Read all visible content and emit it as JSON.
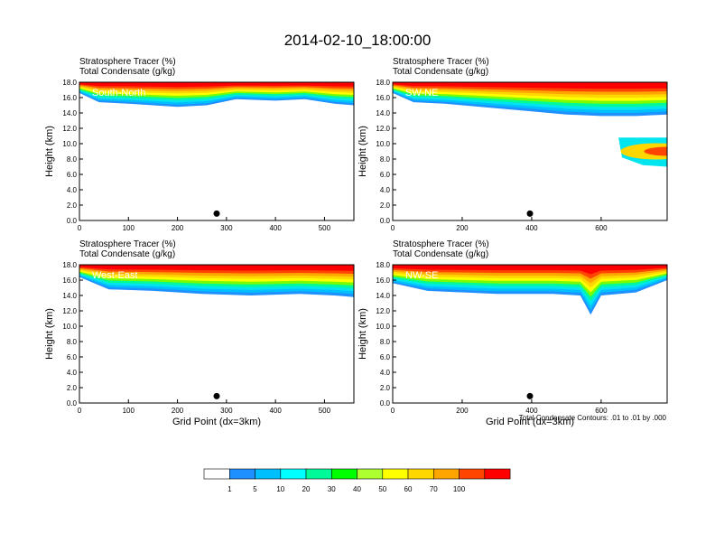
{
  "figure": {
    "title": "2014-02-10_18:00:00",
    "footnote": "Total Condensate Contours: .01 to .01 by .000"
  },
  "colorbar": {
    "labels": [
      "1",
      "5",
      "10",
      "20",
      "30",
      "40",
      "50",
      "60",
      "70",
      "100"
    ],
    "colors": [
      "#ffffff",
      "#1e90ff",
      "#00bfff",
      "#00ffff",
      "#00fa9a",
      "#00ff00",
      "#adff2f",
      "#ffff00",
      "#ffd700",
      "#ffa500",
      "#ff4500",
      "#ff0000"
    ]
  },
  "chart_data": [
    {
      "type": "heatmap",
      "panel": "South-North",
      "label_top": "Stratosphere Tracer   (%)",
      "label_sub": "Total Condensate   (g/kg)",
      "xlabel": "",
      "ylabel": "Height (km)",
      "xlim": [
        0,
        560
      ],
      "ylim": [
        0,
        18
      ],
      "xticks": [
        "0",
        "100",
        "200",
        "300",
        "400",
        "500"
      ],
      "yticks": [
        "0.0",
        "2.0",
        "4.0",
        "6.0",
        "8.0",
        "10.0",
        "12.0",
        "14.0",
        "16.0",
        "18.0"
      ],
      "tropopause": [
        [
          0,
          16.6
        ],
        [
          40,
          15.4
        ],
        [
          100,
          15.2
        ],
        [
          200,
          14.8
        ],
        [
          260,
          15.0
        ],
        [
          320,
          15.8
        ],
        [
          400,
          15.6
        ],
        [
          460,
          15.8
        ],
        [
          520,
          15.2
        ],
        [
          560,
          15.0
        ]
      ],
      "plume": [],
      "marker_x": 280
    },
    {
      "type": "heatmap",
      "panel": "SW-NE",
      "label_top": "Stratosphere Tracer   (%)",
      "label_sub": "Total Condensate   (g/kg)",
      "xlabel": "",
      "ylabel": "Height (km)",
      "xlim": [
        0,
        790
      ],
      "ylim": [
        0,
        18
      ],
      "xticks": [
        "0",
        "200",
        "400",
        "600"
      ],
      "yticks": [
        "0.0",
        "2.0",
        "4.0",
        "6.0",
        "8.0",
        "10.0",
        "12.0",
        "14.0",
        "16.0",
        "18.0"
      ],
      "tropopause": [
        [
          0,
          16.6
        ],
        [
          60,
          15.4
        ],
        [
          150,
          15.2
        ],
        [
          300,
          14.6
        ],
        [
          400,
          14.2
        ],
        [
          500,
          13.8
        ],
        [
          600,
          13.6
        ],
        [
          700,
          13.6
        ],
        [
          790,
          13.8
        ]
      ],
      "plume": [
        [
          650,
          10.8
        ],
        [
          790,
          10.8
        ],
        [
          790,
          7.0
        ],
        [
          720,
          7.2
        ],
        [
          660,
          8.2
        ]
      ],
      "marker_x": 395
    },
    {
      "type": "heatmap",
      "panel": "West-East",
      "label_top": "Stratosphere Tracer   (%)",
      "label_sub": "Total Condensate   (g/kg)",
      "xlabel": "Grid Point (dx=3km)",
      "ylabel": "Height (km)",
      "xlim": [
        0,
        560
      ],
      "ylim": [
        0,
        18
      ],
      "xticks": [
        "0",
        "100",
        "200",
        "300",
        "400",
        "500"
      ],
      "yticks": [
        "0.0",
        "2.0",
        "4.0",
        "6.0",
        "8.0",
        "10.0",
        "12.0",
        "14.0",
        "16.0",
        "18.0"
      ],
      "tropopause": [
        [
          0,
          16.4
        ],
        [
          60,
          14.8
        ],
        [
          150,
          14.6
        ],
        [
          250,
          14.2
        ],
        [
          350,
          14.0
        ],
        [
          450,
          14.2
        ],
        [
          520,
          14.0
        ],
        [
          560,
          13.8
        ]
      ],
      "plume": [],
      "marker_x": 280
    },
    {
      "type": "heatmap",
      "panel": "NW-SE",
      "label_top": "Stratosphere Tracer   (%)",
      "label_sub": "Total Condensate   (g/kg)",
      "xlabel": "Grid Point (dx=3km)",
      "ylabel": "Height (km)",
      "xlim": [
        0,
        790
      ],
      "ylim": [
        0,
        18
      ],
      "xticks": [
        "0",
        "200",
        "400",
        "600"
      ],
      "yticks": [
        "0.0",
        "2.0",
        "4.0",
        "6.0",
        "8.0",
        "10.0",
        "12.0",
        "14.0",
        "16.0",
        "18.0"
      ],
      "tropopause": [
        [
          0,
          15.6
        ],
        [
          100,
          14.6
        ],
        [
          300,
          14.2
        ],
        [
          460,
          14.2
        ],
        [
          540,
          14.0
        ],
        [
          570,
          11.5
        ],
        [
          600,
          14.0
        ],
        [
          700,
          14.4
        ],
        [
          790,
          16.0
        ]
      ],
      "plume": [],
      "marker_x": 395
    }
  ]
}
